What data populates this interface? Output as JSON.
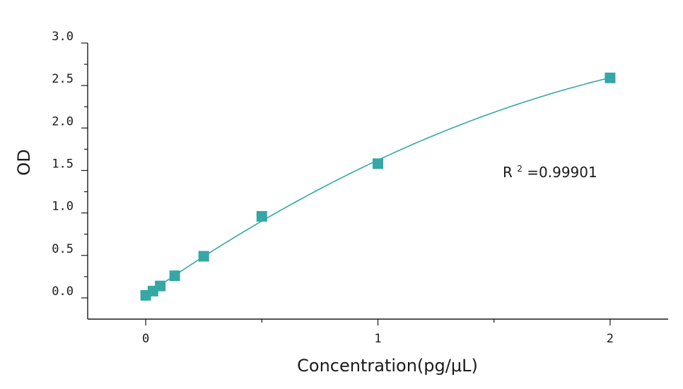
{
  "chart_data": {
    "type": "scatter",
    "title": "",
    "xlabel": "Concentration(pg/μL)",
    "ylabel": "OD",
    "xlim": [
      -0.25,
      2.25
    ],
    "ylim": [
      -0.25,
      3.0
    ],
    "x_ticks": [
      0,
      1,
      2
    ],
    "x_tick_labels": [
      "0",
      "1",
      "2"
    ],
    "y_ticks": [
      0.0,
      0.5,
      1.0,
      1.5,
      2.0,
      2.5,
      3.0
    ],
    "y_tick_labels": [
      "0.0",
      "0.5",
      "1.0",
      "1.5",
      "2.0",
      "2.5",
      "3.0"
    ],
    "grid": false,
    "legend": "none",
    "color": "#35a7a5",
    "annotation": {
      "r_label": "R",
      "r_sup": "2",
      "r_value": "=0.99901"
    },
    "series": [
      {
        "x": [
          0,
          0.03125,
          0.0625,
          0.125,
          0.25,
          0.5,
          1,
          2
        ],
        "y": [
          0.03,
          0.08,
          0.14,
          0.26,
          0.49,
          0.96,
          1.58,
          2.59
        ]
      }
    ],
    "fit_curve": {
      "type": "quadratic",
      "coefficients": [
        0.032,
        1.9,
        -0.31
      ],
      "x_range": [
        0,
        2
      ]
    }
  }
}
